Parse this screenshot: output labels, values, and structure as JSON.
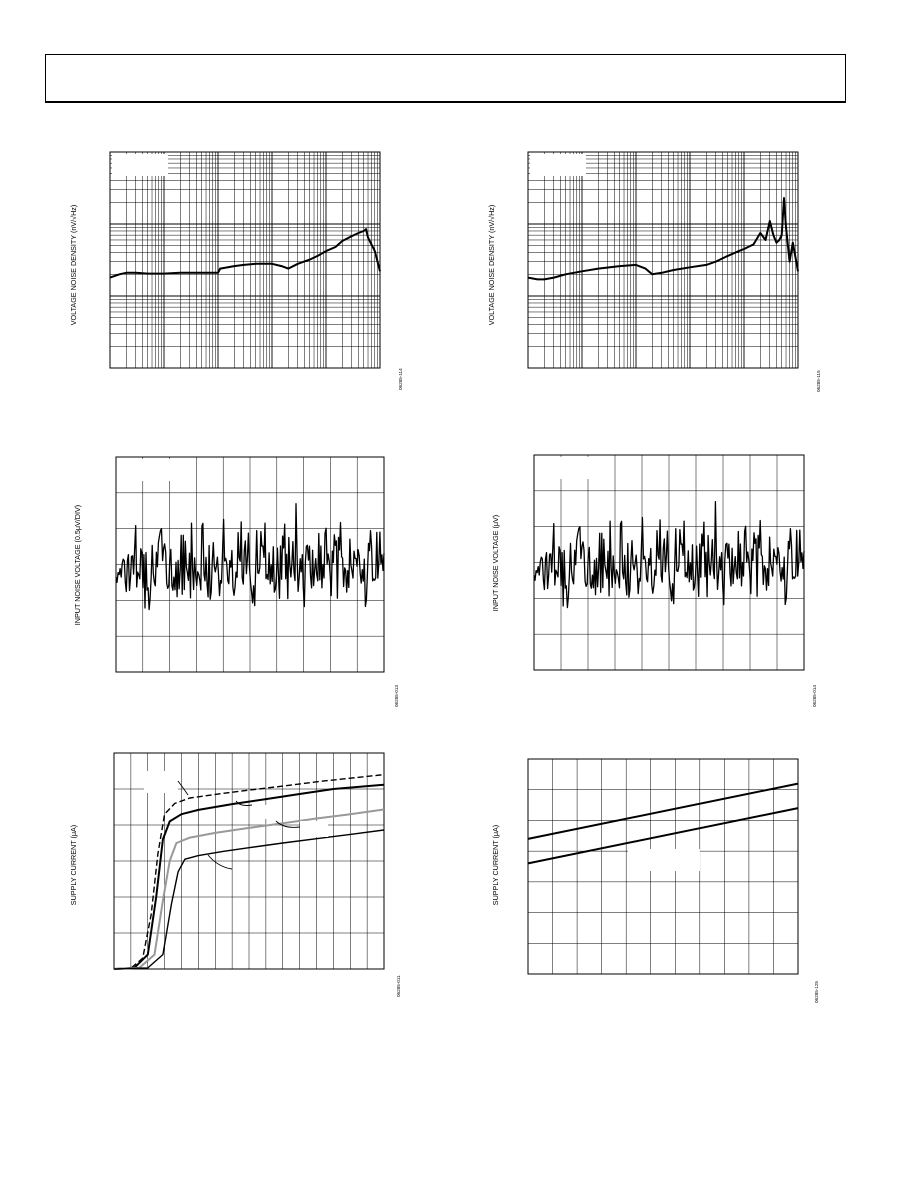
{
  "page": {
    "header": ""
  },
  "charts": [
    {
      "id": "noise-density-1",
      "figure_id": "06285-114",
      "chart_data": {
        "type": "line",
        "title": "",
        "xlabel": "",
        "ylabel": "VOLTAGE NOISE DENSITY (nV/√Hz)",
        "xscale": "log",
        "yscale": "log",
        "xlim": [
          1,
          100000
        ],
        "ylim": [
          1,
          1000
        ],
        "grid": true,
        "series": [
          {
            "x": [
              1,
              1.5,
              2,
              3,
              5,
              10,
              20,
              50,
              100,
              110,
              200,
              300,
              500,
              1000,
              1500,
              2000,
              3000,
              5000,
              7000,
              10000,
              15000,
              20000,
              30000,
              40000,
              50000,
              55000,
              60000,
              80000,
              100000
            ],
            "y": [
              18,
              20,
              21,
              21,
              20.5,
              20.5,
              21,
              21,
              21,
              24,
              26,
              27,
              28,
              28,
              26,
              24,
              28,
              32,
              36,
              42,
              48,
              58,
              68,
              75,
              80,
              85,
              65,
              42,
              22
            ]
          }
        ]
      }
    },
    {
      "id": "noise-density-2",
      "figure_id": "06285-115",
      "chart_data": {
        "type": "line",
        "title": "",
        "xlabel": "",
        "ylabel": "VOLTAGE NOISE DENSITY (nV/√Hz)",
        "xscale": "log",
        "yscale": "log",
        "xlim": [
          1,
          100000
        ],
        "ylim": [
          1,
          1000
        ],
        "grid": true,
        "series": [
          {
            "x": [
              1,
              1.5,
              2,
              3,
              5,
              10,
              20,
              50,
              100,
              150,
              200,
              300,
              500,
              1000,
              2000,
              3000,
              5000,
              8000,
              10000,
              15000,
              20000,
              25000,
              30000,
              35000,
              40000,
              45000,
              50000,
              55000,
              60000,
              70000,
              80000,
              100000
            ],
            "y": [
              18,
              17,
              17,
              18,
              20,
              22,
              24,
              26,
              27,
              24,
              20,
              21,
              23,
              25,
              27,
              30,
              36,
              42,
              45,
              52,
              75,
              60,
              110,
              70,
              55,
              60,
              70,
              230,
              90,
              30,
              55,
              22
            ]
          }
        ]
      }
    },
    {
      "id": "input-noise-1",
      "figure_id": "06285-013",
      "chart_data": {
        "type": "line",
        "title": "",
        "xlabel": "",
        "ylabel": "INPUT NOISE VOLTAGE (0.5μV/DIV)",
        "xlim": [
          0,
          10
        ],
        "ylim": [
          -3,
          3
        ],
        "grid": true,
        "series": [
          {
            "x": [],
            "y": []
          }
        ]
      }
    },
    {
      "id": "input-noise-2",
      "figure_id": "06285-014",
      "chart_data": {
        "type": "line",
        "title": "",
        "xlabel": "",
        "ylabel": "INPUT NOISE VOLTAGE (μV)",
        "xlim": [
          0,
          10
        ],
        "ylim": [
          -3,
          3
        ],
        "grid": true,
        "series": [
          {
            "x": [],
            "y": []
          }
        ]
      }
    },
    {
      "id": "supply-current-1",
      "figure_id": "06285-011",
      "chart_data": {
        "type": "line",
        "title": "",
        "xlabel": "",
        "ylabel": "SUPPLY CURRENT (μA)",
        "xlim": [
          0,
          16
        ],
        "ylim": [
          0,
          6
        ],
        "grid": true,
        "series": [
          {
            "style": "dashed",
            "x": [
              0,
              1,
              1.7,
              2.2,
              2.6,
              3,
              3.6,
              4.5,
              6,
              8,
              10,
              12,
              14,
              16
            ],
            "y": [
              0,
              0.02,
              0.3,
              1.5,
              3.2,
              4.3,
              4.6,
              4.75,
              4.85,
              4.97,
              5.08,
              5.2,
              5.3,
              5.4
            ]
          },
          {
            "style": "solid",
            "x": [
              0,
              1.2,
              2,
              2.5,
              2.9,
              3.3,
              4,
              5,
              7,
              9,
              11,
              13,
              16
            ],
            "y": [
              0,
              0.03,
              0.4,
              2.0,
              3.6,
              4.1,
              4.3,
              4.42,
              4.58,
              4.72,
              4.86,
              5.0,
              5.12
            ]
          },
          {
            "style": "gray",
            "x": [
              0,
              1.5,
              2.4,
              2.9,
              3.3,
              3.7,
              4.5,
              6,
              8,
              10,
              12,
              14,
              16
            ],
            "y": [
              0,
              0.03,
              0.4,
              1.9,
              3.0,
              3.5,
              3.65,
              3.78,
              3.92,
              4.05,
              4.18,
              4.3,
              4.43
            ]
          },
          {
            "style": "solid-thin",
            "x": [
              0,
              2,
              2.9,
              3.4,
              3.8,
              4.2,
              5,
              6.5,
              8,
              10,
              12,
              14,
              16
            ],
            "y": [
              0,
              0.03,
              0.4,
              1.8,
              2.7,
              3.05,
              3.15,
              3.27,
              3.37,
              3.5,
              3.62,
              3.74,
              3.86
            ]
          }
        ]
      }
    },
    {
      "id": "supply-current-2",
      "figure_id": "06285-125",
      "chart_data": {
        "type": "line",
        "title": "",
        "xlabel": "",
        "ylabel": "SUPPLY CURRENT (μA)",
        "xlim": [
          0,
          11
        ],
        "ylim": [
          0,
          7
        ],
        "grid": true,
        "series": [
          {
            "x": [
              0,
              11
            ],
            "y": [
              4.4,
              6.2
            ]
          },
          {
            "x": [
              0,
              11
            ],
            "y": [
              3.6,
              5.4
            ]
          }
        ]
      }
    }
  ]
}
